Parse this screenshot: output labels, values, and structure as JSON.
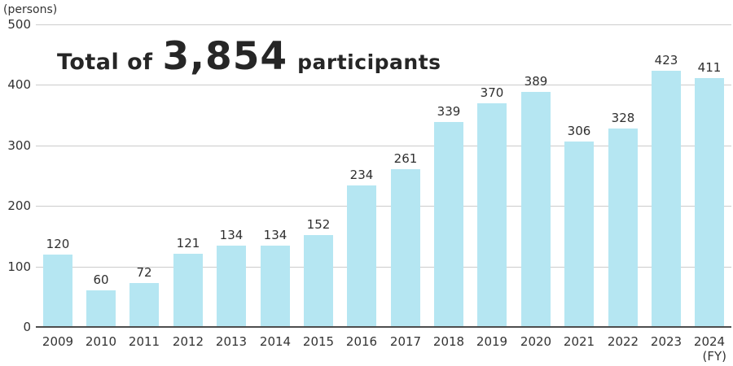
{
  "chart_data": {
    "type": "bar",
    "title_annotation": {
      "prefix": "Total of",
      "total": "3,854",
      "suffix": "participants"
    },
    "unit_label": "(persons)",
    "x_axis_suffix": "(FY)",
    "categories": [
      "2009",
      "2010",
      "2011",
      "2012",
      "2013",
      "2014",
      "2015",
      "2016",
      "2017",
      "2018",
      "2019",
      "2020",
      "2021",
      "2022",
      "2023",
      "2024"
    ],
    "values": [
      120,
      60,
      72,
      121,
      134,
      134,
      152,
      234,
      261,
      339,
      370,
      389,
      306,
      328,
      423,
      411
    ],
    "ylabel": "",
    "xlabel": "",
    "ylim": [
      0,
      500
    ],
    "yticks": [
      0,
      100,
      200,
      300,
      400,
      500
    ],
    "grid": true,
    "legend": false,
    "colors": {
      "bar": "#b5e6f2",
      "gridline": "#cccccc",
      "axis": "#4d4d4d",
      "text": "#333333",
      "title": "#262626"
    }
  }
}
